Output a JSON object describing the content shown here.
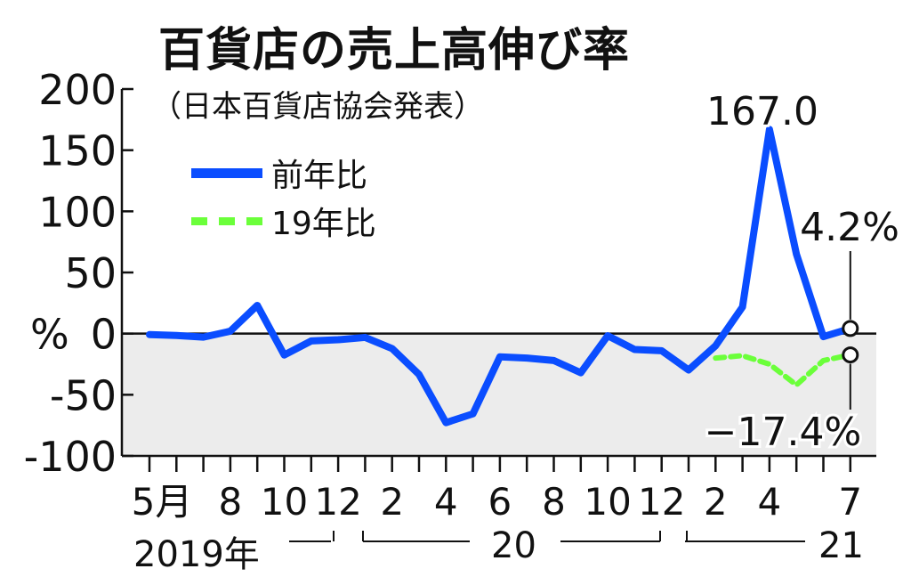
{
  "title": "百貨店の売上高伸び率",
  "subtitle": "（日本百貨店協会発表）",
  "chart_data": {
    "type": "line",
    "title": "百貨店の売上高伸び率",
    "subtitle": "（日本百貨店協会発表）",
    "ylabel": "%",
    "ylim": [
      -100,
      200
    ],
    "yticks": [
      "200",
      "150",
      "100",
      "50",
      "0",
      "-50",
      "-100"
    ],
    "y_unit_prefix": "%",
    "legend_position": "top-left",
    "grid": false,
    "shaded_negative_region": true,
    "month_labels": [
      "5月",
      "8",
      "10",
      "12",
      "2",
      "4",
      "6",
      "8",
      "10",
      "12",
      "2",
      "4",
      "7"
    ],
    "year_labels": [
      "2019年",
      "20",
      "21"
    ],
    "series": [
      {
        "name": "前年比",
        "color": "#0a4dff",
        "style": "solid",
        "x": [
          "2019-05",
          "2019-06",
          "2019-07",
          "2019-08",
          "2019-09",
          "2019-10",
          "2019-11",
          "2019-12",
          "2020-01",
          "2020-02",
          "2020-03",
          "2020-04",
          "2020-05",
          "2020-06",
          "2020-07",
          "2020-08",
          "2020-09",
          "2020-10",
          "2020-11",
          "2020-12",
          "2021-01",
          "2021-02",
          "2021-03",
          "2021-04",
          "2021-05",
          "2021-06",
          "2021-07"
        ],
        "values": [
          -0.8,
          -1.5,
          -2.9,
          2.0,
          23.1,
          -17.5,
          -6.0,
          -5.0,
          -3.1,
          -12.2,
          -33.4,
          -72.8,
          -65.6,
          -19.0,
          -20.0,
          -22.0,
          -32.0,
          -1.7,
          -13.0,
          -14.0,
          -29.7,
          -10.0,
          21.8,
          167.0,
          65.0,
          -2.5,
          4.2
        ]
      },
      {
        "name": "19年比",
        "color": "#6bff3a",
        "style": "dashed",
        "x": [
          "2021-02",
          "2021-03",
          "2021-04",
          "2021-05",
          "2021-06",
          "2021-07"
        ],
        "values": [
          -20.0,
          -18.0,
          -25.0,
          -42.0,
          -22.0,
          -17.4
        ]
      }
    ],
    "annotations": [
      {
        "text": "167.0",
        "x": "2021-04",
        "y": 167.0
      },
      {
        "text": "4.2%",
        "x": "2021-07",
        "y": 4.2
      },
      {
        "text": "−17.4%",
        "x": "2021-07",
        "y": -17.4
      }
    ]
  }
}
